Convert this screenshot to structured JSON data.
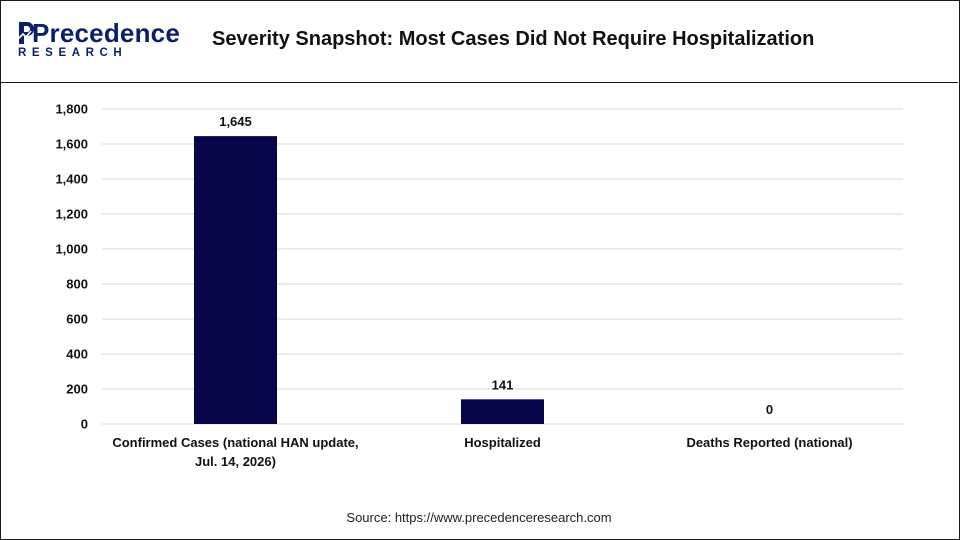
{
  "brand": {
    "name_main": "Precedence",
    "name_sub": "RESEARCH",
    "color": "#0b1f6b"
  },
  "header": {
    "title": "Severity Snapshot: Most Cases Did Not Require Hospitalization"
  },
  "footer": {
    "source": "Source: https://www.precedenceresearch.com"
  },
  "chart_data": {
    "type": "bar",
    "categories": [
      [
        "Confirmed Cases (national HAN update,",
        "Jul. 14, 2026)"
      ],
      [
        "Hospitalized"
      ],
      [
        "Deaths Reported (national)"
      ]
    ],
    "values": [
      1645,
      141,
      0
    ],
    "value_labels": [
      "1,645",
      "141",
      "0"
    ],
    "ylim": [
      0,
      1800
    ],
    "yticks": [
      0,
      200,
      400,
      600,
      800,
      1000,
      1200,
      1400,
      1600,
      1800
    ],
    "ytick_labels": [
      "0",
      "200",
      "400",
      "600",
      "800",
      "1,000",
      "1,200",
      "1,400",
      "1,600",
      "1,800"
    ],
    "bar_color": "#06064a",
    "grid": true,
    "title": "",
    "xlabel": "",
    "ylabel": ""
  }
}
